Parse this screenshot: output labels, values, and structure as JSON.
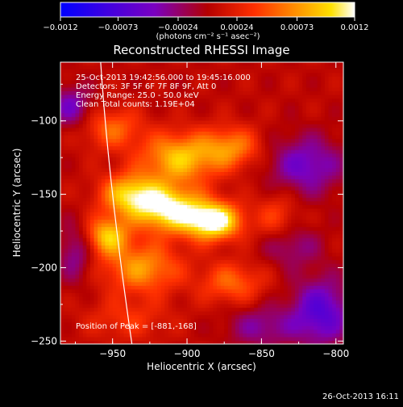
{
  "chart_data": {
    "type": "heatmap",
    "title": "Reconstructed RHESSI Image",
    "xlabel": "Heliocentric X (arcsec)",
    "ylabel": "Heliocentric Y (arcsec)",
    "xlim": [
      -985,
      -795
    ],
    "ylim": [
      -252,
      -60
    ],
    "x_ticks": [
      {
        "value": -950,
        "label": "−950"
      },
      {
        "value": -900,
        "label": "−900"
      },
      {
        "value": -850,
        "label": "−850"
      },
      {
        "value": -800,
        "label": "−800"
      }
    ],
    "y_ticks": [
      {
        "value": -100,
        "label": "−100"
      },
      {
        "value": -150,
        "label": "−150"
      },
      {
        "value": -200,
        "label": "−200"
      },
      {
        "value": -250,
        "label": "−250"
      }
    ],
    "colorbar": {
      "range": [
        -0.0012,
        0.0012
      ],
      "ticks": [
        {
          "value": -0.0012,
          "label": "−0.0012"
        },
        {
          "value": -0.00073,
          "label": "−0.00073"
        },
        {
          "value": -0.00024,
          "label": "−0.00024"
        },
        {
          "value": 0.00024,
          "label": "0.00024"
        },
        {
          "value": 0.00073,
          "label": "0.00073"
        },
        {
          "value": 0.0012,
          "label": "0.0012"
        }
      ],
      "units": "(photons cm⁻² s⁻¹ asec⁻²)",
      "colors": [
        "#0000ff",
        "#7a00c0",
        "#b40000",
        "#ff6a00",
        "#ffd000",
        "#ffffff"
      ]
    },
    "annotations": [
      "25-Oct-2013 19:42:56.000 to 19:45:16.000",
      "Detectors: 3F 5F 6F 7F 8F 9F, Att 0",
      "Energy Range: 25.0 - 50.0 keV",
      "Clean    Total counts: 1.19E+04"
    ],
    "peak_label": "Position of Peak = [-881,-168]",
    "peak": {
      "x": -881,
      "y": -168
    },
    "limb_curve": [
      [
        -958,
        -60
      ],
      [
        -950,
        -150
      ],
      [
        -937,
        -252
      ]
    ],
    "sources": [
      {
        "x": -882,
        "y": -168,
        "amp": 0.00125,
        "sx": 13,
        "sy": 9
      },
      {
        "x": -912,
        "y": -160,
        "amp": 0.0011,
        "sx": 16,
        "sy": 11
      },
      {
        "x": -938,
        "y": -150,
        "amp": 0.0009,
        "sx": 14,
        "sy": 10
      },
      {
        "x": -953,
        "y": -178,
        "amp": 0.00085,
        "sx": 10,
        "sy": 9
      },
      {
        "x": -905,
        "y": -125,
        "amp": 0.00085,
        "sx": 18,
        "sy": 12
      },
      {
        "x": -930,
        "y": -200,
        "amp": 0.0007,
        "sx": 18,
        "sy": 12
      },
      {
        "x": -870,
        "y": -210,
        "amp": 0.0005,
        "sx": 15,
        "sy": 10
      },
      {
        "x": -870,
        "y": -118,
        "amp": 0.0006,
        "sx": 14,
        "sy": 10
      },
      {
        "x": -950,
        "y": -105,
        "amp": 0.0005,
        "sx": 14,
        "sy": 10
      },
      {
        "x": -840,
        "y": -165,
        "amp": 0.00035,
        "sx": 10,
        "sy": 12
      },
      {
        "x": -940,
        "y": -235,
        "amp": 0.0003,
        "sx": 20,
        "sy": 10
      },
      {
        "x": -978,
        "y": -90,
        "amp": -0.0005,
        "sx": 10,
        "sy": 10
      },
      {
        "x": -975,
        "y": -190,
        "amp": -0.0004,
        "sx": 8,
        "sy": 14
      },
      {
        "x": -820,
        "y": -130,
        "amp": -0.00055,
        "sx": 18,
        "sy": 14
      },
      {
        "x": -810,
        "y": -230,
        "amp": -0.0007,
        "sx": 14,
        "sy": 16
      },
      {
        "x": -850,
        "y": -240,
        "amp": -0.0004,
        "sx": 16,
        "sy": 10
      },
      {
        "x": -830,
        "y": -185,
        "amp": -0.00035,
        "sx": 14,
        "sy": 10
      }
    ]
  },
  "footer": {
    "timestamp": "26-Oct-2013 16:11"
  }
}
